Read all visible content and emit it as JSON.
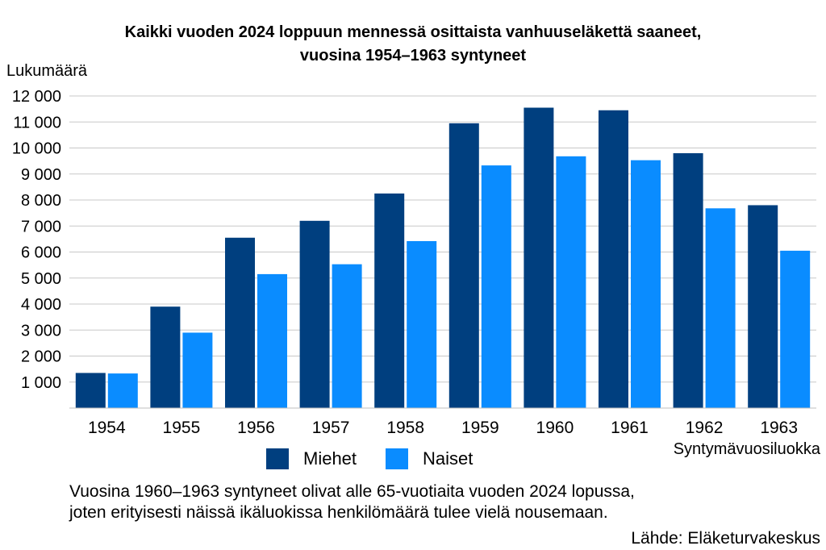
{
  "chart_data": {
    "type": "bar",
    "title": "Kaikki vuoden 2024 loppuun mennessä osittaista vanhuuseläkettä saaneet,",
    "subtitle": "vuosina 1954–1963 syntyneet",
    "ylabel": "Lukumäärä",
    "xlabel": "Syntymävuosiluokka",
    "ylim": [
      0,
      12000
    ],
    "yticks": [
      1000,
      2000,
      3000,
      4000,
      5000,
      6000,
      7000,
      8000,
      9000,
      10000,
      11000,
      12000
    ],
    "ytick_labels": [
      "1 000",
      "2 000",
      "3 000",
      "4 000",
      "5 000",
      "6 000",
      "7 000",
      "8 000",
      "9 000",
      "10 000",
      "11 000",
      "12 000"
    ],
    "grid": true,
    "legend_position": "bottom-center",
    "categories": [
      "1954",
      "1955",
      "1956",
      "1957",
      "1958",
      "1959",
      "1960",
      "1961",
      "1962",
      "1963"
    ],
    "series": [
      {
        "name": "Miehet",
        "color": "#003F7F",
        "values": [
          1350,
          3900,
          6550,
          7200,
          8250,
          10950,
          11550,
          11450,
          9800,
          7800
        ]
      },
      {
        "name": "Naiset",
        "color": "#0A8CFF",
        "values": [
          1330,
          2900,
          5150,
          5530,
          6420,
          9330,
          9680,
          9530,
          7680,
          6050
        ]
      }
    ]
  },
  "notes": {
    "line1": "Vuosina 1960–1963 syntyneet olivat alle 65-vuotiaita vuoden 2024 lopussa,",
    "line2": "joten erityisesti näissä ikäluokissa henkilömäärä tulee vielä nousemaan.",
    "source": "Lähde: Eläketurvakeskus"
  }
}
